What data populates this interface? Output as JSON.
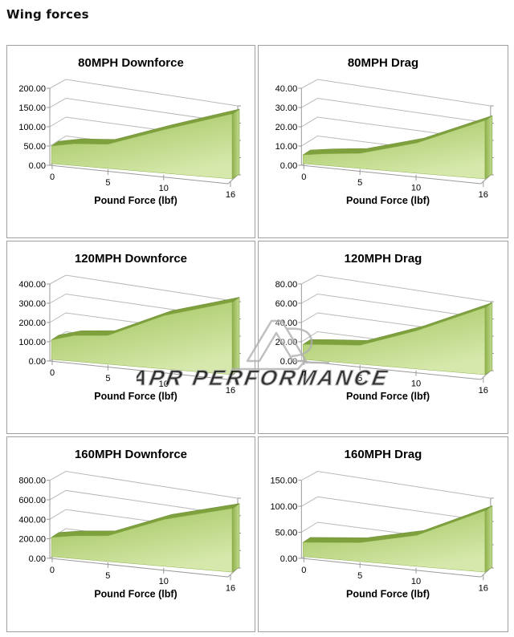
{
  "page": {
    "title": "Wing forces"
  },
  "watermark": {
    "text": "APR PERFORMANCE",
    "logo": "apr-logo-mark",
    "color": "#b0b0b0"
  },
  "chart_style": {
    "grid_color": "#b9b9b9",
    "axis_color": "#9a9a9a",
    "area_top_band": "#7ea03d",
    "area_face_dark": "#9dc258",
    "area_face_light": "#d6e8ab",
    "area_cap_dark": "#8db04a",
    "area_cap_light": "#c3da90",
    "panel_border": "#a0a0a0"
  },
  "chart_data": [
    {
      "type": "area",
      "title": "80MPH Downforce",
      "xlabel": "Pound Force (lbf)",
      "x_range": [
        0,
        16
      ],
      "x_ticks": [
        0,
        5,
        10,
        16
      ],
      "x_tick_labels": [
        "0",
        "5",
        "10",
        "16"
      ],
      "y_max": 200,
      "y_ticks": [
        "0.00",
        "50.00",
        "100.00",
        "150.00",
        "200.00"
      ],
      "x": [
        0,
        2,
        5,
        10,
        16
      ],
      "values": [
        50,
        60,
        64,
        108,
        150
      ]
    },
    {
      "type": "area",
      "title": "80MPH Drag",
      "xlabel": "Pound Force (lbf)",
      "x_range": [
        0,
        16
      ],
      "x_ticks": [
        0,
        5,
        10,
        16
      ],
      "x_tick_labels": [
        "0",
        "5",
        "10",
        "16"
      ],
      "y_max": 40,
      "y_ticks": [
        "0.00",
        "10.00",
        "20.00",
        "30.00",
        "40.00"
      ],
      "x": [
        0,
        2,
        5,
        10,
        16
      ],
      "values": [
        5,
        6.5,
        8,
        15,
        27
      ]
    },
    {
      "type": "area",
      "title": "120MPH Downforce",
      "xlabel": "Pound Force (lbf)",
      "x_range": [
        0,
        16
      ],
      "x_ticks": [
        0,
        5,
        10,
        16
      ],
      "x_tick_labels": [
        "0",
        "5",
        "10",
        "16"
      ],
      "y_max": 400,
      "y_ticks": [
        "0.00",
        "100.00",
        "200.00",
        "300.00",
        "400.00"
      ],
      "x": [
        0,
        2,
        5,
        10,
        16
      ],
      "values": [
        110,
        142,
        152,
        265,
        335
      ]
    },
    {
      "type": "area",
      "title": "120MPH Drag",
      "xlabel": "Pound Force (lbf)",
      "x_range": [
        0,
        16
      ],
      "x_ticks": [
        0,
        5,
        10,
        16
      ],
      "x_tick_labels": [
        "0",
        "5",
        "10",
        "16"
      ],
      "y_max": 80,
      "y_ticks": [
        "0.00",
        "20.00",
        "40.00",
        "60.00",
        "80.00"
      ],
      "x": [
        0,
        2,
        5,
        10,
        16
      ],
      "values": [
        17,
        18.5,
        20,
        38,
        62
      ]
    },
    {
      "type": "area",
      "title": "160MPH Downforce",
      "xlabel": "Pound Force (lbf)",
      "x_range": [
        0,
        16
      ],
      "x_ticks": [
        0,
        5,
        10,
        16
      ],
      "x_tick_labels": [
        "0",
        "5",
        "10",
        "16"
      ],
      "y_max": 800,
      "y_ticks": [
        "0.00",
        "200.00",
        "400.00",
        "600.00",
        "800.00"
      ],
      "x": [
        0,
        2,
        5,
        10,
        16
      ],
      "values": [
        215,
        248,
        268,
        460,
        580
      ]
    },
    {
      "type": "area",
      "title": "160MPH Drag",
      "xlabel": "Pound Force (lbf)",
      "x_range": [
        0,
        16
      ],
      "x_ticks": [
        0,
        5,
        10,
        16
      ],
      "x_tick_labels": [
        "0",
        "5",
        "10",
        "16"
      ],
      "y_max": 150,
      "y_ticks": [
        "0.00",
        "50.00",
        "100.00",
        "150.00"
      ],
      "x": [
        0,
        2,
        5,
        10,
        16
      ],
      "values": [
        30,
        33,
        37,
        57,
        105
      ]
    }
  ]
}
